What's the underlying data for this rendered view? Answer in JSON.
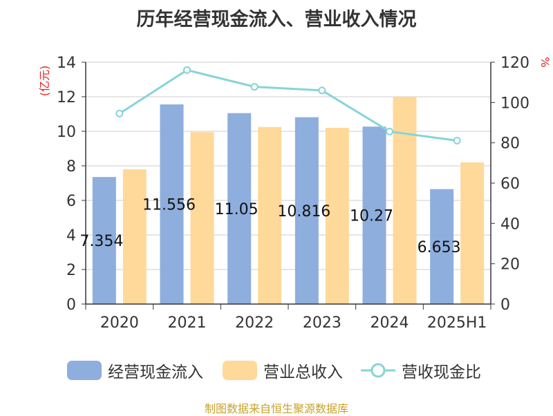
{
  "chart_data": {
    "type": "bar",
    "title": "历年经营现金流入、营业收入情况",
    "categories": [
      "2020",
      "2021",
      "2022",
      "2023",
      "2024",
      "2025H1"
    ],
    "series": [
      {
        "name": "经营现金流入",
        "type": "bar",
        "axis": "left",
        "color": "#8eaedd",
        "values": [
          7.354,
          11.556,
          11.05,
          10.816,
          10.27,
          6.653
        ],
        "labels": [
          "7.354",
          "11.556",
          "11.05",
          "10.816",
          "10.27",
          "6.653"
        ]
      },
      {
        "name": "营业总收入",
        "type": "bar",
        "axis": "left",
        "color": "#ffd99a",
        "values": [
          7.8,
          9.95,
          10.25,
          10.2,
          12.0,
          8.2
        ]
      },
      {
        "name": "营收现金比",
        "type": "line",
        "axis": "right",
        "color": "#86d4d8",
        "values": [
          94.5,
          116.1,
          107.8,
          106.0,
          85.6,
          81.1
        ]
      }
    ],
    "y_left": {
      "label": "(亿元)",
      "label_color": "#e02020",
      "ylim": [
        0,
        14
      ],
      "ticks": [
        "0",
        "2",
        "4",
        "6",
        "8",
        "10",
        "12",
        "14"
      ]
    },
    "y_right": {
      "label": "%",
      "label_color": "#e02020",
      "ylim": [
        0,
        120
      ],
      "ticks": [
        "0",
        "20",
        "40",
        "60",
        "80",
        "100",
        "120"
      ]
    },
    "grid": true,
    "legend_position": "bottom"
  },
  "source": "制图数据来自恒生聚源数据库"
}
